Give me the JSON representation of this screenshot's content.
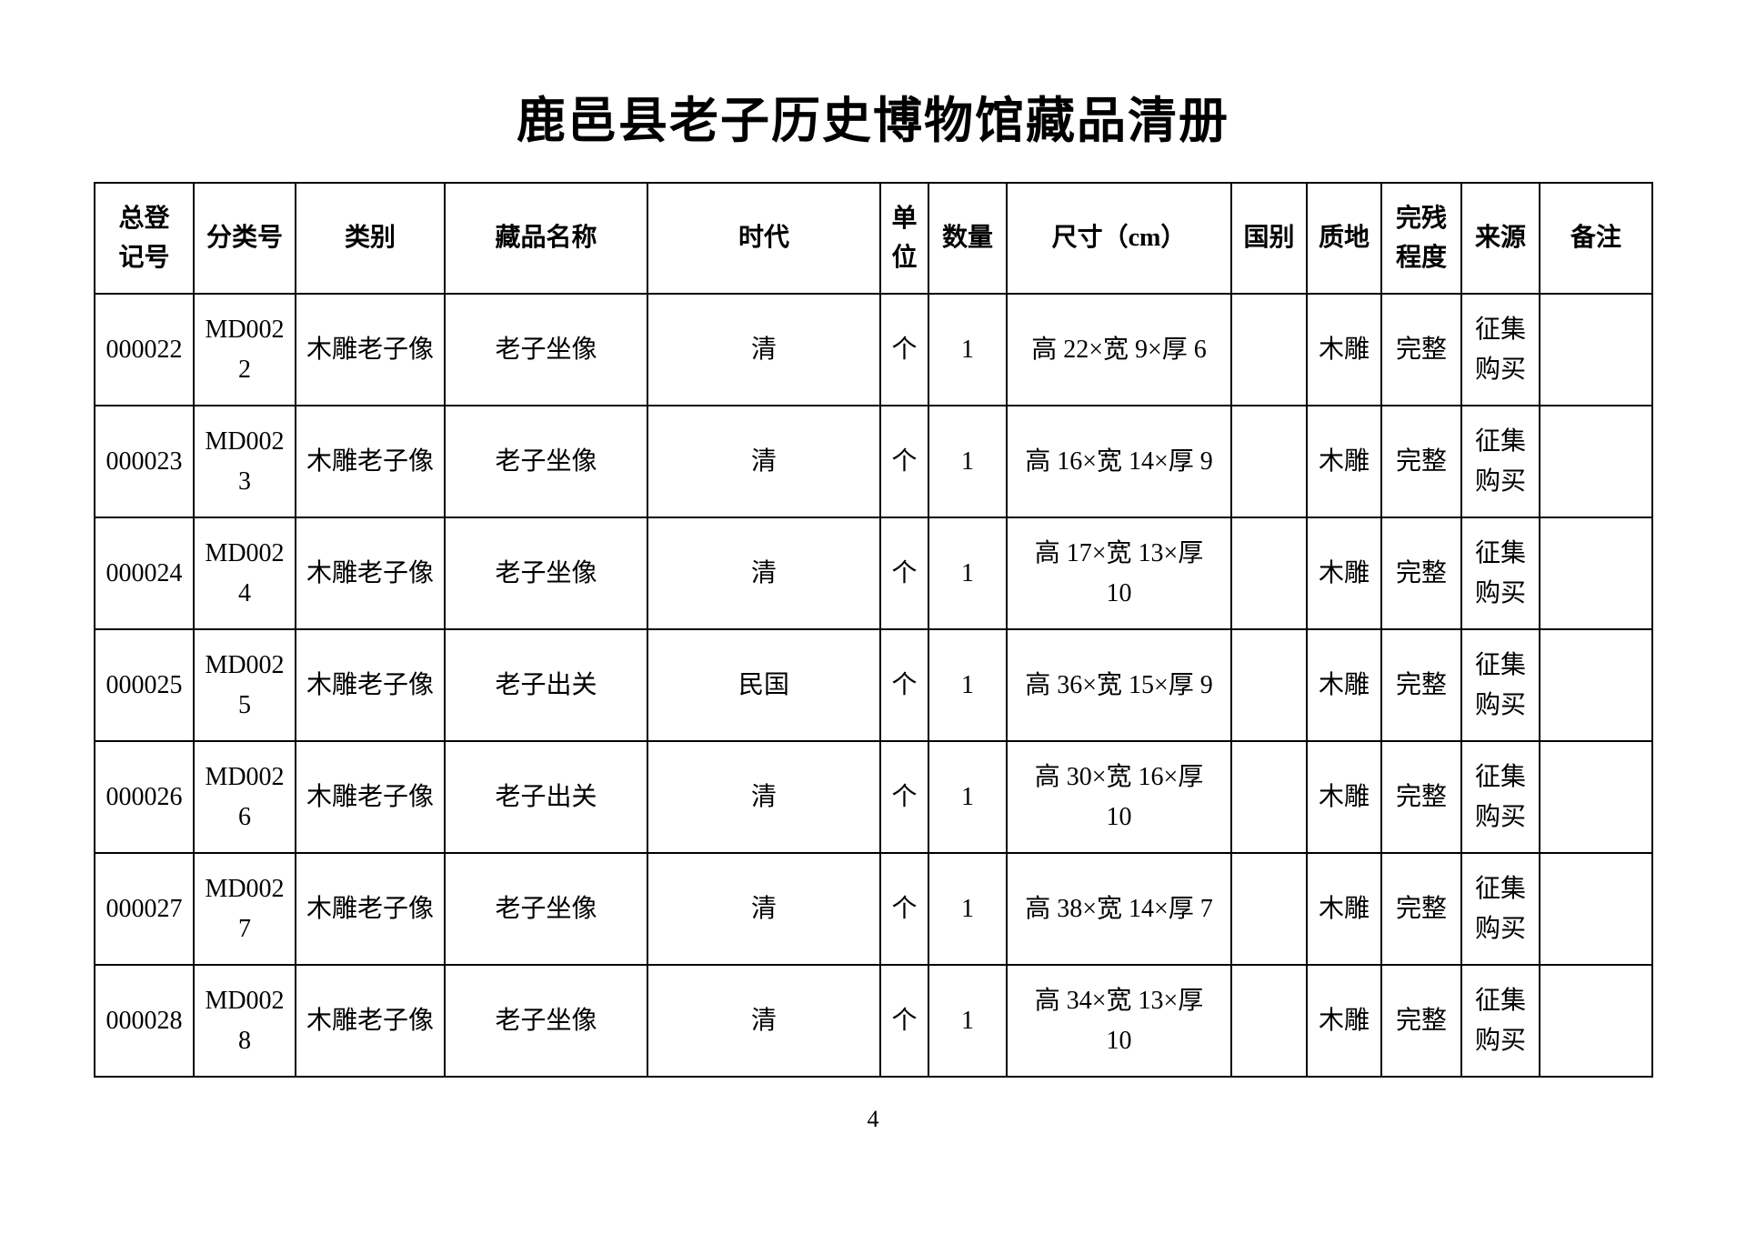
{
  "document": {
    "title": "鹿邑县老子历史博物馆藏品清册",
    "page_number": "4"
  },
  "table": {
    "column_keys": [
      "reg_no",
      "class_no",
      "category",
      "name",
      "era",
      "unit",
      "quantity",
      "dimensions",
      "country",
      "material",
      "condition",
      "source",
      "remarks"
    ],
    "headers": [
      "总登\n记号",
      "分类号",
      "类别",
      "藏品名称",
      "时代",
      "单\n位",
      "数量",
      "尺寸（cm）",
      "国别",
      "质地",
      "完残\n程度",
      "来源",
      "备注"
    ],
    "rows": [
      {
        "reg_no": "000022",
        "class_no": "MD0022",
        "category": "木雕老子像",
        "name": "老子坐像",
        "era": "清",
        "unit": "个",
        "quantity": "1",
        "dimensions": "高 22×宽 9×厚 6",
        "country": "",
        "material": "木雕",
        "condition": "完整",
        "source": "征集\n购买",
        "remarks": ""
      },
      {
        "reg_no": "000023",
        "class_no": "MD0023",
        "category": "木雕老子像",
        "name": "老子坐像",
        "era": "清",
        "unit": "个",
        "quantity": "1",
        "dimensions": "高 16×宽 14×厚 9",
        "country": "",
        "material": "木雕",
        "condition": "完整",
        "source": "征集\n购买",
        "remarks": ""
      },
      {
        "reg_no": "000024",
        "class_no": "MD0024",
        "category": "木雕老子像",
        "name": "老子坐像",
        "era": "清",
        "unit": "个",
        "quantity": "1",
        "dimensions": "高 17×宽 13×厚\n10",
        "country": "",
        "material": "木雕",
        "condition": "完整",
        "source": "征集\n购买",
        "remarks": ""
      },
      {
        "reg_no": "000025",
        "class_no": "MD0025",
        "category": "木雕老子像",
        "name": "老子出关",
        "era": "民国",
        "unit": "个",
        "quantity": "1",
        "dimensions": "高 36×宽 15×厚 9",
        "country": "",
        "material": "木雕",
        "condition": "完整",
        "source": "征集\n购买",
        "remarks": ""
      },
      {
        "reg_no": "000026",
        "class_no": "MD0026",
        "category": "木雕老子像",
        "name": "老子出关",
        "era": "清",
        "unit": "个",
        "quantity": "1",
        "dimensions": "高 30×宽 16×厚\n10",
        "country": "",
        "material": "木雕",
        "condition": "完整",
        "source": "征集\n购买",
        "remarks": ""
      },
      {
        "reg_no": "000027",
        "class_no": "MD0027",
        "category": "木雕老子像",
        "name": "老子坐像",
        "era": "清",
        "unit": "个",
        "quantity": "1",
        "dimensions": "高 38×宽 14×厚 7",
        "country": "",
        "material": "木雕",
        "condition": "完整",
        "source": "征集\n购买",
        "remarks": ""
      },
      {
        "reg_no": "000028",
        "class_no": "MD0028",
        "category": "木雕老子像",
        "name": "老子坐像",
        "era": "清",
        "unit": "个",
        "quantity": "1",
        "dimensions": "高 34×宽 13×厚\n10",
        "country": "",
        "material": "木雕",
        "condition": "完整",
        "source": "征集\n购买",
        "remarks": ""
      }
    ]
  }
}
